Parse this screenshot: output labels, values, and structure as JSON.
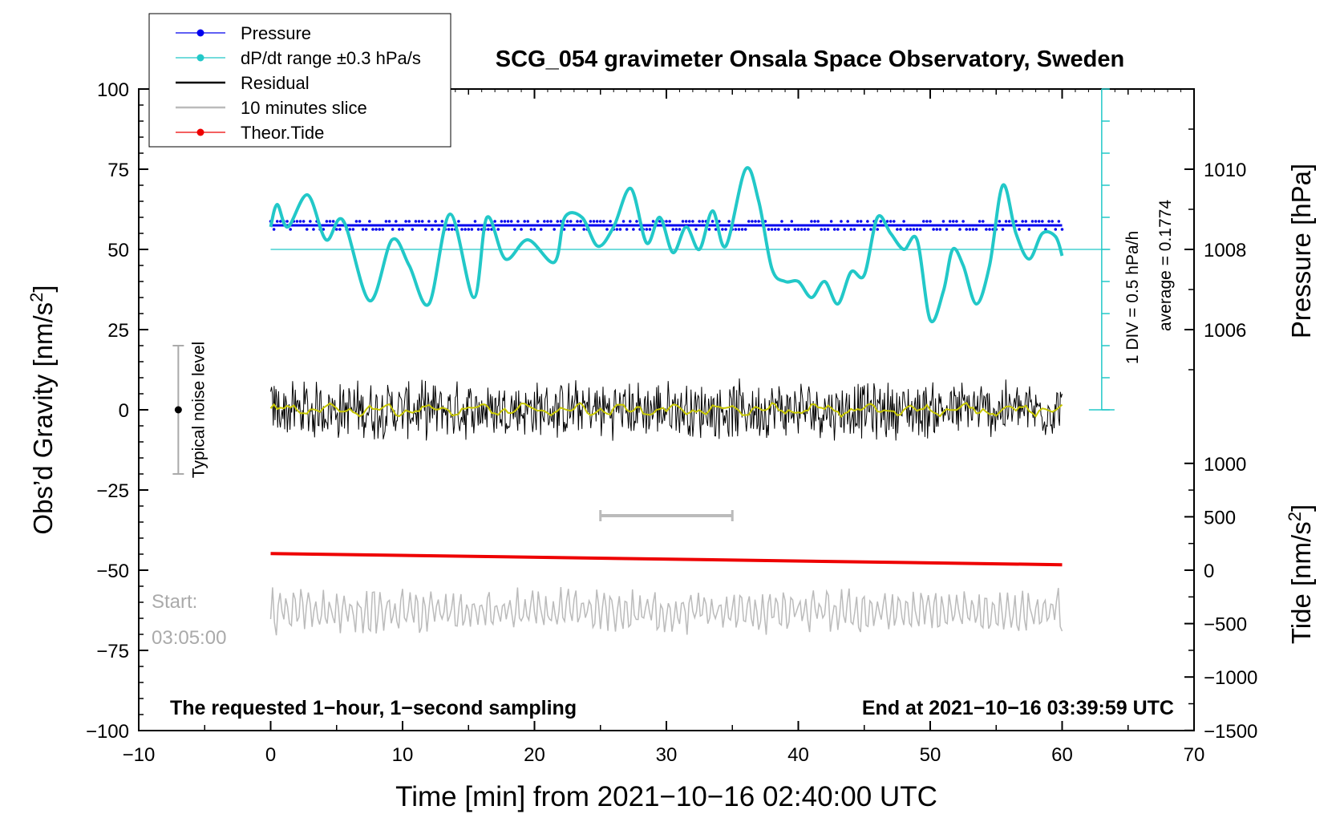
{
  "chart_data": {
    "type": "line",
    "title": "SCG_054 gravimeter Onsala Space Observatory, Sweden",
    "xlabel": "Time [min] from 2021−10−16 02:40:00 UTC",
    "ylabel_left": "Obs’d Gravity [nm/s²]",
    "ylabel_left_main": "Obs’d Gravity [nm/s",
    "ylabel_left_sup": "2",
    "ylabel_left_end": "]",
    "ylabel_pressure": "Pressure [hPa]",
    "ylabel_tide": "Tide [nm/s²]",
    "ylabel_tide_main": "Tide [nm/s",
    "ylabel_tide_sup": "2",
    "ylabel_tide_end": "]",
    "xlim": [
      -10,
      70
    ],
    "ylim": [
      -100,
      100
    ],
    "x_ticks": [
      -10,
      0,
      10,
      20,
      30,
      40,
      50,
      60,
      70
    ],
    "x_tick_labels": [
      "−10",
      "0",
      "10",
      "20",
      "30",
      "40",
      "50",
      "60",
      "70"
    ],
    "y_ticks": [
      -100,
      -75,
      -50,
      -25,
      0,
      25,
      50,
      75,
      100
    ],
    "y_tick_labels": [
      "−100",
      "−75",
      "−50",
      "−25",
      "0",
      "25",
      "50",
      "75",
      "100"
    ],
    "pressure_axis": {
      "ticks": [
        1006,
        1008,
        1010
      ],
      "tick_labels": [
        "1006",
        "1008",
        "1010"
      ],
      "gravity_at_1006": 25,
      "gravity_per_hPa": 12.5
    },
    "tide_axis": {
      "ticks": [
        -1500,
        -1000,
        -500,
        0,
        500,
        1000
      ],
      "tick_labels": [
        "−1500",
        "−1000",
        "−500",
        "0",
        "500",
        "1000"
      ],
      "gravity_at_0": -50,
      "gravity_per_unit": 0.0333
    },
    "legend": [
      {
        "label": "Pressure",
        "color": "#0000ee",
        "marker": "dot"
      },
      {
        "label": "dP/dt range ±0.3 hPa/s",
        "color": "#22c8c8",
        "marker": "dot"
      },
      {
        "label": "Residual",
        "color": "#000000",
        "marker": "none"
      },
      {
        "label": "10 minutes slice",
        "color": "#bbbbbb",
        "marker": "none"
      },
      {
        "label": "Theor.Tide",
        "color": "#ee0000",
        "marker": "dot"
      }
    ],
    "series": [
      {
        "name": "Pressure",
        "color": "#0000ee",
        "x": [
          0,
          60
        ],
        "values_hPa": [
          1008.6,
          1008.6
        ],
        "scatter_hPa": [
          1008.5,
          1008.7
        ]
      },
      {
        "name": "dP/dt",
        "color": "#22c8c8",
        "x": [
          0,
          0.5,
          1.3,
          2.8,
          4.2,
          5.5,
          7.5,
          9.2,
          10.5,
          12,
          13.6,
          15.4,
          16.4,
          17.8,
          19.5,
          21.5,
          22.3,
          23.6,
          24.8,
          26,
          27.3,
          28.5,
          29.5,
          30.5,
          31.5,
          32.5,
          33.5,
          34.5,
          36,
          37,
          38,
          39,
          40,
          41,
          42,
          43,
          44,
          45,
          46,
          47,
          48,
          49,
          50,
          51,
          51.7,
          52.5,
          53.5,
          54.5,
          55.5,
          56.5,
          57.5,
          58.5,
          59.5,
          60
        ],
        "values": [
          57,
          64,
          57,
          67,
          53,
          59,
          34,
          53,
          45,
          33,
          61,
          35,
          60,
          47,
          53,
          46,
          60,
          60,
          51,
          57,
          69,
          52,
          60,
          49,
          57,
          50,
          62,
          51,
          75,
          65,
          44,
          40,
          40,
          35,
          40,
          33,
          43,
          42,
          60,
          55,
          50,
          53,
          28,
          37,
          50,
          45,
          33,
          45,
          70,
          55,
          47,
          55,
          54,
          48
        ]
      },
      {
        "name": "Residual",
        "color": "#000000",
        "x_range": [
          0,
          60
        ],
        "mean": 0,
        "amplitude": 10
      },
      {
        "name": "Smoothed residual",
        "color": "#c8c800",
        "x_range": [
          0,
          60
        ],
        "mean": 0,
        "amplitude": 2
      },
      {
        "name": "Theor.Tide",
        "color": "#ee0000",
        "x": [
          0,
          60
        ],
        "values": [
          -44.8,
          -48.3
        ]
      },
      {
        "name": "10 minutes slice",
        "color": "#bbbbbb",
        "x_range": [
          0,
          60
        ],
        "mean": -63,
        "amplitude": 6
      }
    ],
    "pressure_scale": {
      "label": "1 DIV = 0.5 hPa/h",
      "average_label": "average = 0.1774",
      "x": 63,
      "y_range": [
        0,
        100
      ],
      "div_step": 10
    },
    "slice_marker": {
      "x_range": [
        25,
        35
      ],
      "y": -33
    },
    "noise_bar": {
      "label": "Typical noise level",
      "x": -7,
      "y_range": [
        -20,
        20
      ],
      "center": 0
    },
    "start_annotation": {
      "line1": "Start:",
      "line2": "03:05:00"
    },
    "footer_left": "The requested 1−hour, 1−second sampling",
    "footer_right": "End at 2021−10−16 03:39:59 UTC"
  }
}
